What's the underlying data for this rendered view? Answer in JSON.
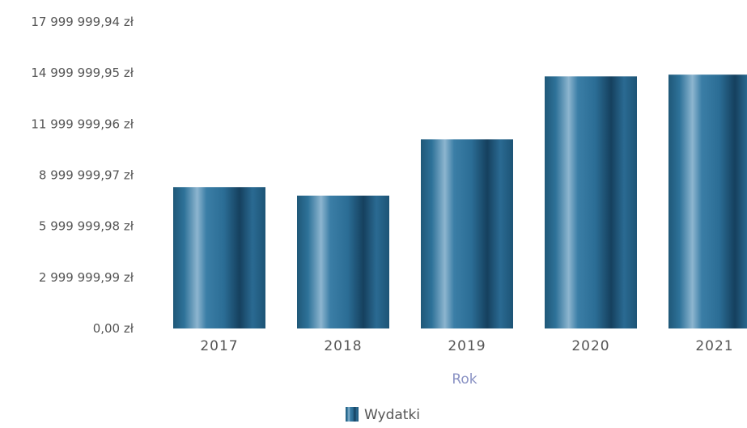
{
  "chart_data": {
    "type": "bar",
    "title": "",
    "xlabel": "Rok",
    "ylabel": "",
    "categories": [
      "2017",
      "2018",
      "2019",
      "2020",
      "2021"
    ],
    "series": [
      {
        "name": "Wydatki",
        "values": [
          8300000,
          7800000,
          11100000,
          14800000,
          14900000
        ]
      }
    ],
    "y_ticks": [
      {
        "value": 0,
        "label": "0,00 zł"
      },
      {
        "value": 2999999.99,
        "label": "2 999 999,99 zł"
      },
      {
        "value": 5999999.98,
        "label": "5 999 999,98 zł"
      },
      {
        "value": 8999999.97,
        "label": "8 999 999,97 zł"
      },
      {
        "value": 11999999.96,
        "label": "11 999 999,96 zł"
      },
      {
        "value": 14999999.95,
        "label": "14 999 999,95 zł"
      },
      {
        "value": 17999999.94,
        "label": "17 999 999,94 zł"
      }
    ],
    "ylim": [
      0,
      17999999.94
    ],
    "grid": false,
    "legend": {
      "position": "bottom-center",
      "entries": [
        "Wydatki"
      ]
    },
    "colors": {
      "bar_dark": "#1b4d6e",
      "bar_mid": "#2a6f96",
      "bar_light": "#6fa2c4"
    }
  }
}
